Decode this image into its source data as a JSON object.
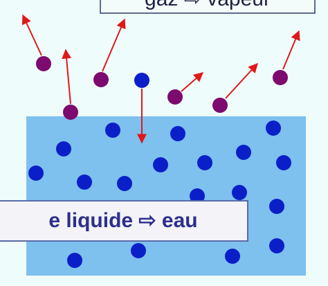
{
  "top_label": "gaz ⇨ vapeur",
  "bottom_label": "e liquide ⇨ eau"
}
